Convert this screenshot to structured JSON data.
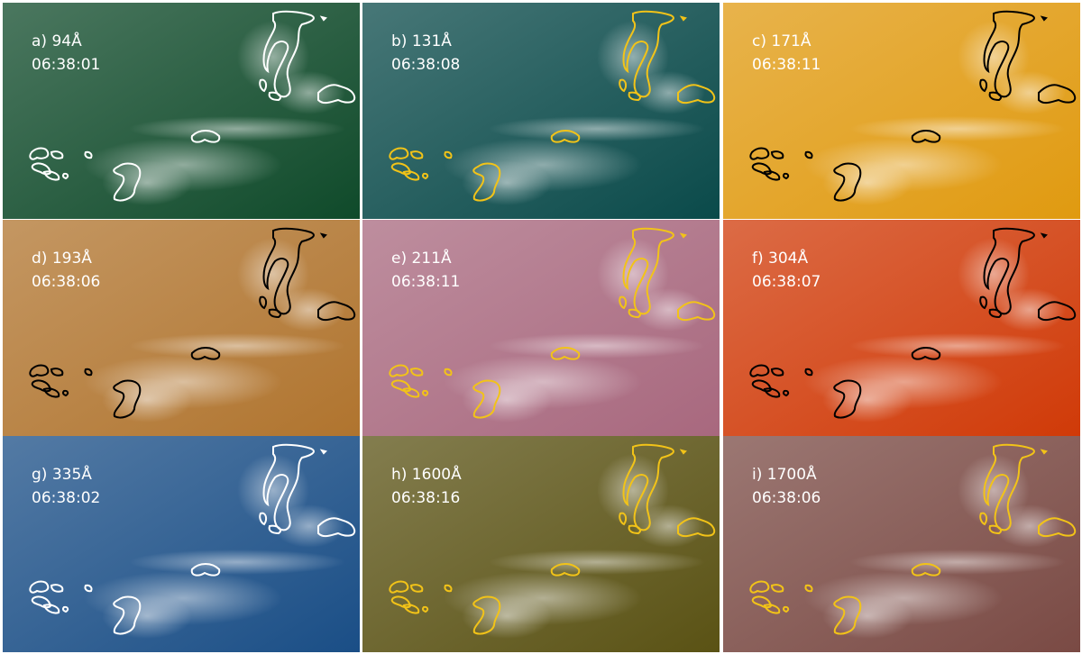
{
  "panels": [
    {
      "label": "a) 94Å",
      "time": "06:38:01",
      "color": "#0f4a2a",
      "contour_color": "#ffffff"
    },
    {
      "label": "b) 131Å",
      "time": "06:38:08",
      "color": "#0a4a4a",
      "contour_color": "#f2c318"
    },
    {
      "label": "c) 171Å",
      "time": "06:38:11",
      "color": "#e09a10",
      "contour_color": "#000000"
    },
    {
      "label": "d) 193Å",
      "time": "06:38:06",
      "color": "#b0742e",
      "contour_color": "#000000"
    },
    {
      "label": "e) 211Å",
      "time": "06:38:11",
      "color": "#a8687e",
      "contour_color": "#f2c318"
    },
    {
      "label": "f) 304Å",
      "time": "06:38:07",
      "color": "#d03a08",
      "contour_color": "#000000"
    },
    {
      "label": "g) 335Å",
      "time": "06:38:02",
      "color": "#1a4e86",
      "contour_color": "#ffffff"
    },
    {
      "label": "h) 1600Å",
      "time": "06:38:16",
      "color": "#5a5214",
      "contour_color": "#f2c318"
    },
    {
      "label": "i) 1700Å",
      "time": "06:38:06",
      "color": "#7a4a44",
      "contour_color": "#f2c318"
    }
  ]
}
